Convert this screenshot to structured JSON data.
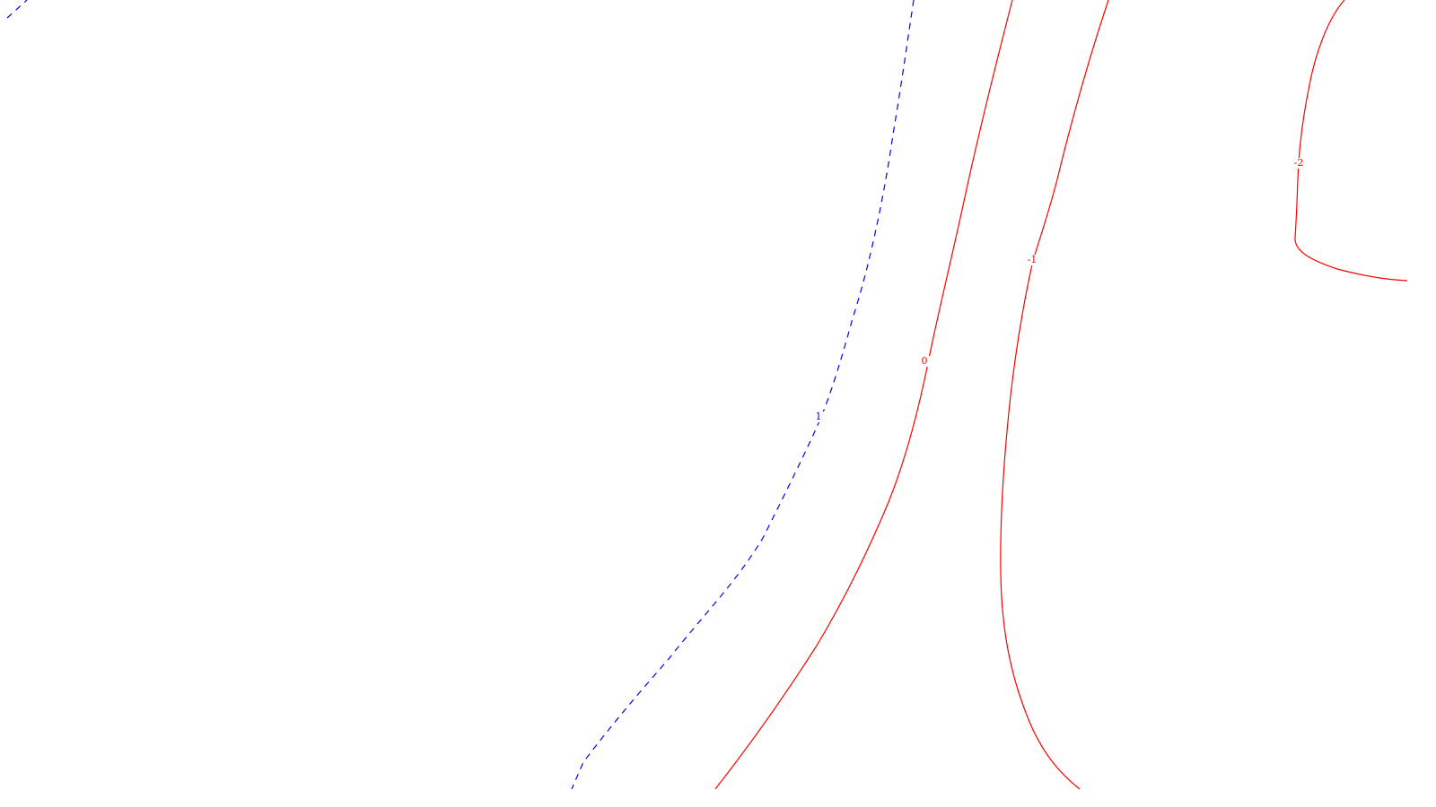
{
  "chart_data": {
    "type": "contour",
    "title": "",
    "xlabel": "",
    "ylabel": "",
    "grid": false,
    "legend": "none",
    "colors": {
      "positive": "#0000ff",
      "non_positive": "#ff0000"
    },
    "levels": [
      {
        "value": 1,
        "label": "1",
        "color": "#0000ff",
        "style": "dashed"
      },
      {
        "value": 0,
        "label": "0",
        "color": "#ff0000",
        "style": "solid"
      },
      {
        "value": -1,
        "label": "-1",
        "color": "#ff0000",
        "style": "solid"
      },
      {
        "value": -2,
        "label": "-2",
        "color": "#ff0000",
        "style": "solid"
      }
    ]
  }
}
